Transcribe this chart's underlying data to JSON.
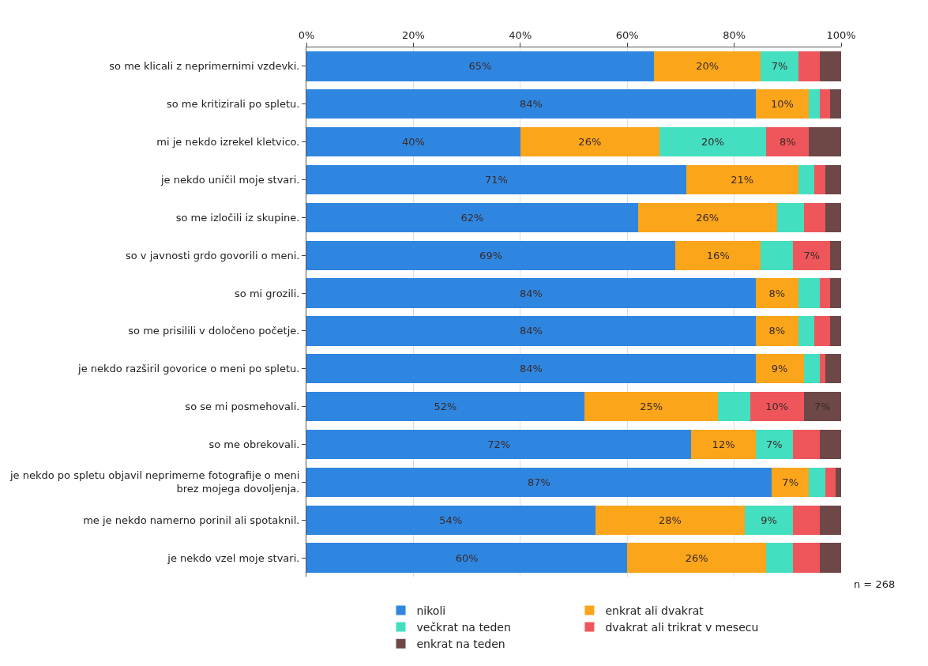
{
  "chart_data": {
    "type": "bar",
    "orientation": "horizontal",
    "stacked": true,
    "categories": [
      "so me klicali z neprimernimi vzdevki.",
      "so me kritizirali po spletu.",
      "mi je nekdo izrekel kletvico.",
      "je nekdo uničil moje stvari.",
      "so me izločili iz skupine.",
      "so v javnosti grdo govorili o meni.",
      "so mi grozili.",
      "so me prisilili v določeno početje.",
      "je nekdo razširil govorice o meni po spletu.",
      "so se mi posmehovali.",
      "so me obrekovali.",
      "je nekdo po spletu objavil neprimerne fotografije o meni\nbrez mojega dovoljenja.",
      "me je nekdo namerno porinil ali spotaknil.",
      "je nekdo vzel moje stvari."
    ],
    "series": [
      {
        "name": "nikoli",
        "color": "#2f86e0",
        "values": [
          65,
          84,
          40,
          71,
          62,
          69,
          84,
          84,
          84,
          52,
          72,
          87,
          54,
          60
        ],
        "value_labels": [
          "65%",
          "84%",
          "40%",
          "71%",
          "62%",
          "69%",
          "84%",
          "84%",
          "84%",
          "52%",
          "72%",
          "87%",
          "54%",
          "60%"
        ]
      },
      {
        "name": "enkrat ali dvakrat",
        "color": "#fba51a",
        "values": [
          20,
          10,
          26,
          21,
          26,
          16,
          8,
          8,
          9,
          25,
          12,
          7,
          28,
          26
        ],
        "value_labels": [
          "20%",
          "10%",
          "26%",
          "21%",
          "26%",
          "16%",
          "8%",
          "8%",
          "9%",
          "25%",
          "12%",
          "7%",
          "28%",
          "26%"
        ]
      },
      {
        "name": "večkrat na teden",
        "color": "#43dfc0",
        "values": [
          7,
          2,
          20,
          3,
          5,
          6,
          4,
          3,
          3,
          6,
          7,
          3,
          9,
          5
        ],
        "value_labels": [
          "7%",
          null,
          "20%",
          null,
          null,
          null,
          null,
          null,
          null,
          null,
          "7%",
          null,
          "9%",
          null
        ]
      },
      {
        "name": "dvakrat ali trikrat v mesecu",
        "color": "#ef565b",
        "values": [
          4,
          2,
          8,
          2,
          4,
          7,
          2,
          3,
          1,
          10,
          5,
          2,
          5,
          5
        ],
        "value_labels": [
          null,
          null,
          "8%",
          null,
          null,
          "7%",
          null,
          null,
          null,
          "10%",
          null,
          null,
          null,
          null
        ]
      },
      {
        "name": "enkrat na teden",
        "color": "#6e4747",
        "values": [
          4,
          2,
          6,
          3,
          3,
          2,
          2,
          2,
          3,
          7,
          4,
          1,
          4,
          4
        ],
        "value_labels": [
          null,
          null,
          null,
          null,
          null,
          null,
          null,
          null,
          null,
          "7%",
          null,
          null,
          null,
          null
        ]
      }
    ],
    "xlim": [
      0,
      100
    ],
    "xticks": [
      {
        "value": 0,
        "label": "0%"
      },
      {
        "value": 20,
        "label": "20%"
      },
      {
        "value": 40,
        "label": "40%"
      },
      {
        "value": 60,
        "label": "60%"
      },
      {
        "value": 80,
        "label": "80%"
      },
      {
        "value": 100,
        "label": "100%"
      }
    ],
    "grid": "x",
    "legend": "bottom",
    "annotations": [
      "n = 268"
    ]
  }
}
